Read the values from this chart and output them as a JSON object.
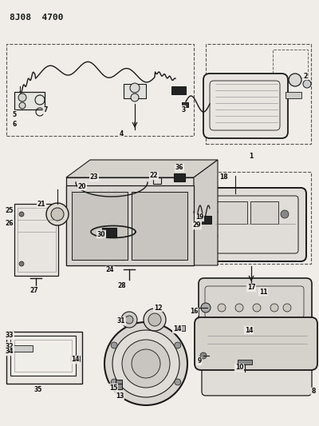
{
  "title": "8J08 4700",
  "bg_color": "#f0ede8",
  "line_color": "#1a1a1a",
  "fig_w": 4.0,
  "fig_h": 5.33,
  "dpi": 100
}
